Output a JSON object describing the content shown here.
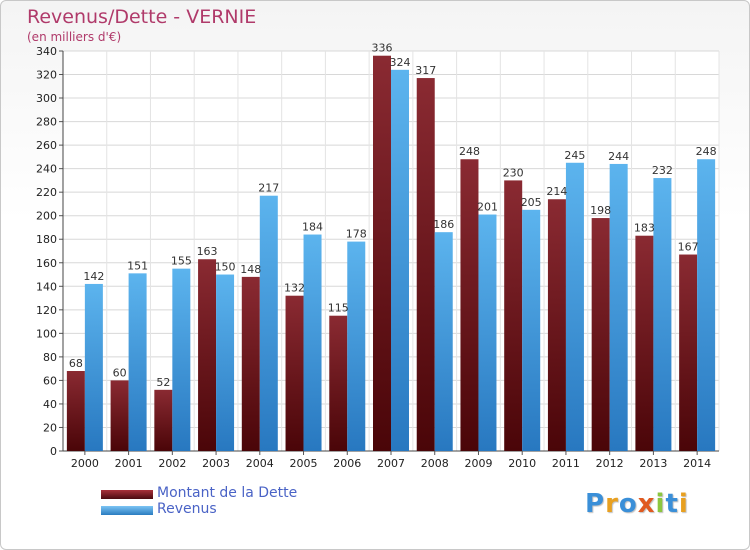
{
  "chart_data": {
    "type": "bar",
    "title": "Revenus/Dette - VERNIE",
    "subtitle": "(en milliers d'€)",
    "categories": [
      "2000",
      "2001",
      "2002",
      "2003",
      "2004",
      "2005",
      "2006",
      "2007",
      "2008",
      "2009",
      "2010",
      "2011",
      "2012",
      "2013",
      "2014"
    ],
    "series": [
      {
        "name": "Montant de la Dette",
        "color": "#7a1a22",
        "values": [
          68,
          60,
          52,
          163,
          148,
          132,
          115,
          336,
          317,
          248,
          230,
          214,
          198,
          183,
          167
        ]
      },
      {
        "name": "Revenus",
        "color": "#3c9ce0",
        "values": [
          142,
          151,
          155,
          150,
          217,
          184,
          178,
          324,
          186,
          201,
          205,
          245,
          244,
          232,
          248
        ]
      }
    ],
    "ylim": [
      0,
      340
    ],
    "ytick_step": 20,
    "grid": true,
    "legend_position": "bottom-left"
  },
  "logo": {
    "letters": [
      "P",
      "r",
      "o",
      "x",
      "i",
      "t",
      "i"
    ],
    "colors": [
      "#3a8fd8",
      "#e8a020",
      "#3a8fd8",
      "#e05a20",
      "#8cc63f",
      "#3a8fd8",
      "#e8a020"
    ]
  }
}
